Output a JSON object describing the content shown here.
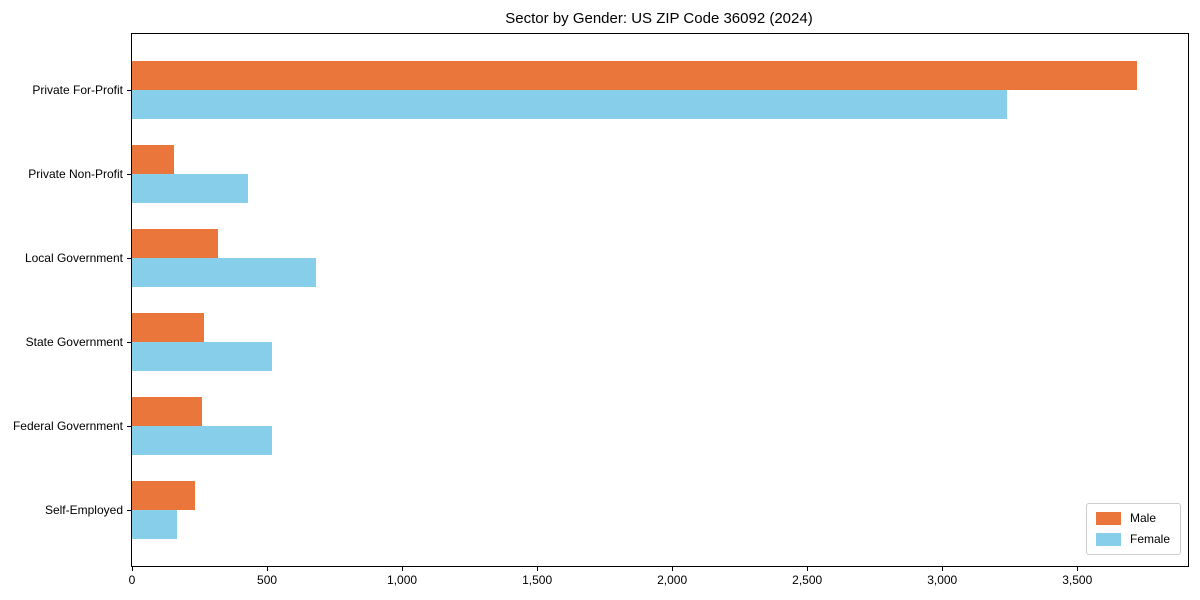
{
  "chart_data": {
    "type": "bar",
    "orientation": "horizontal",
    "title": "Sector by Gender: US ZIP Code 36092 (2024)",
    "categories": [
      "Private For-Profit",
      "Private Non-Profit",
      "Local Government",
      "State Government",
      "Federal Government",
      "Self-Employed"
    ],
    "series": [
      {
        "name": "Male",
        "color": "#EA763B",
        "values": [
          3720,
          155,
          320,
          265,
          260,
          235
        ]
      },
      {
        "name": "Female",
        "color": "#87CEEB",
        "values": [
          3240,
          430,
          680,
          520,
          520,
          165
        ]
      }
    ],
    "xlabel": "",
    "ylabel": "",
    "xlim": [
      0,
      3910
    ],
    "xticks": [
      {
        "value": 0,
        "label": "0"
      },
      {
        "value": 500,
        "label": "500"
      },
      {
        "value": 1000,
        "label": "1,000"
      },
      {
        "value": 1500,
        "label": "1,500"
      },
      {
        "value": 2000,
        "label": "2,000"
      },
      {
        "value": 2500,
        "label": "2,500"
      },
      {
        "value": 3000,
        "label": "3,000"
      },
      {
        "value": 3500,
        "label": "3,500"
      }
    ],
    "grid": false,
    "legend": {
      "position": "lower right",
      "entries": [
        "Male",
        "Female"
      ]
    }
  }
}
